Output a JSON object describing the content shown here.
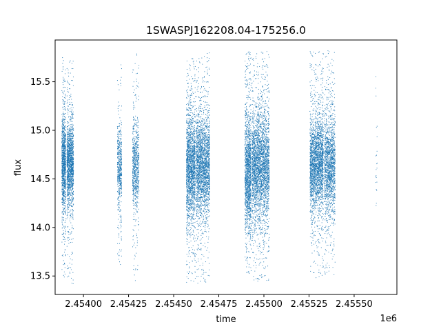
{
  "chart_data": {
    "type": "scatter",
    "title": "1SWASPJ162208.04-175256.0",
    "xlabel": "time",
    "ylabel": "flux",
    "x_offset_label": "1e6",
    "x_tick_labels": [
      "2.45400",
      "2.45425",
      "2.45450",
      "2.45475",
      "2.45500",
      "2.45525",
      "2.45550"
    ],
    "x_ticks": [
      2454000,
      2454250,
      2454500,
      2454750,
      2455000,
      2455250,
      2455500
    ],
    "y_tick_labels": [
      "13.5",
      "14.0",
      "14.5",
      "15.0",
      "15.5"
    ],
    "y_ticks": [
      13.5,
      14.0,
      14.5,
      15.0,
      15.5
    ],
    "xlim": [
      2453843,
      2455737
    ],
    "ylim": [
      13.31,
      15.93
    ],
    "grid": false,
    "point_color": "#1f77b4",
    "observing_seasons": [
      {
        "x_start": 2453880,
        "x_end": 2453902,
        "center": 14.65,
        "spread": 0.22,
        "min": 13.43,
        "max": 15.76,
        "points": 1100
      },
      {
        "x_start": 2453908,
        "x_end": 2453945,
        "center": 14.65,
        "spread": 0.2,
        "min": 13.42,
        "max": 15.72,
        "points": 1500
      },
      {
        "x_start": 2454188,
        "x_end": 2454212,
        "center": 14.62,
        "spread": 0.2,
        "min": 13.6,
        "max": 15.75,
        "points": 550
      },
      {
        "x_start": 2454272,
        "x_end": 2454308,
        "center": 14.62,
        "spread": 0.2,
        "min": 13.45,
        "max": 15.8,
        "points": 750
      },
      {
        "x_start": 2454570,
        "x_end": 2454620,
        "center": 14.62,
        "spread": 0.26,
        "min": 13.43,
        "max": 15.75,
        "points": 1900
      },
      {
        "x_start": 2454625,
        "x_end": 2454700,
        "center": 14.63,
        "spread": 0.24,
        "min": 13.42,
        "max": 15.8,
        "points": 2400
      },
      {
        "x_start": 2454895,
        "x_end": 2454930,
        "center": 14.55,
        "spread": 0.28,
        "min": 13.52,
        "max": 15.82,
        "points": 1500
      },
      {
        "x_start": 2454935,
        "x_end": 2455030,
        "center": 14.64,
        "spread": 0.25,
        "min": 13.44,
        "max": 15.84,
        "points": 3000
      },
      {
        "x_start": 2455255,
        "x_end": 2455330,
        "center": 14.64,
        "spread": 0.22,
        "min": 13.45,
        "max": 15.82,
        "points": 2400
      },
      {
        "x_start": 2455335,
        "x_end": 2455395,
        "center": 14.63,
        "spread": 0.22,
        "min": 13.5,
        "max": 15.82,
        "points": 1600
      },
      {
        "x_start": 2455620,
        "x_end": 2455628,
        "center": 14.7,
        "spread": 0.5,
        "min": 13.45,
        "max": 15.72,
        "points": 22
      }
    ]
  }
}
